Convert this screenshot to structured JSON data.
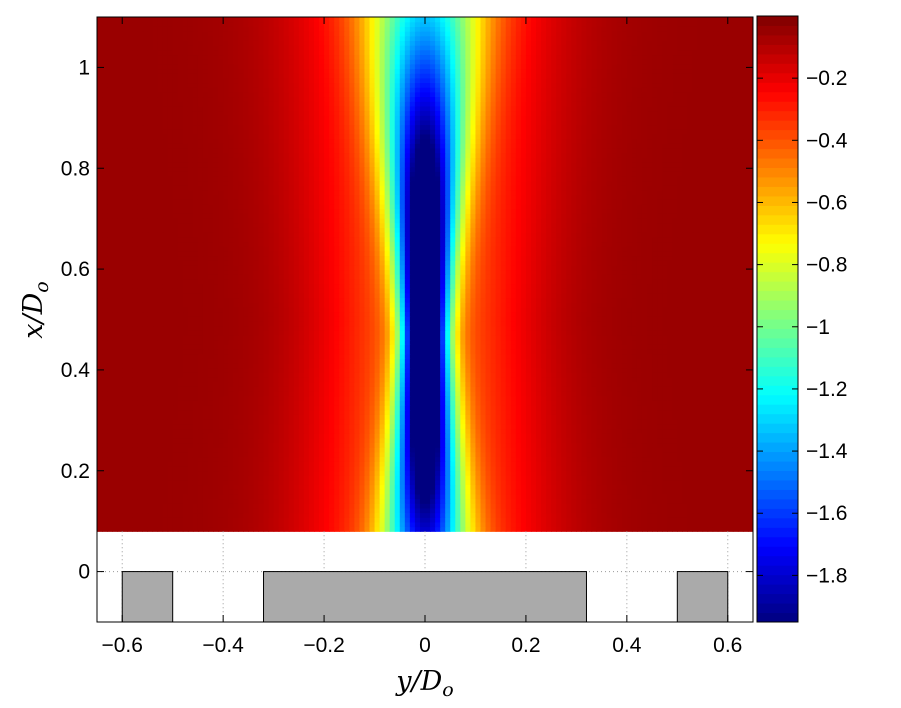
{
  "chart_data": {
    "type": "heatmap",
    "title": "",
    "xlabel": "y/D",
    "xlabel_sub": "o",
    "ylabel": "x/D",
    "ylabel_sub": "o",
    "xlim": [
      -0.65,
      0.65
    ],
    "ylim": [
      -0.1,
      1.1
    ],
    "xticks": [
      -0.6,
      -0.4,
      -0.2,
      0,
      0.2,
      0.4,
      0.6
    ],
    "xtick_labels": [
      "−0.6",
      "−0.4",
      "−0.2",
      "0",
      "0.2",
      "0.4",
      "0.6"
    ],
    "yticks": [
      0,
      0.2,
      0.4,
      0.6,
      0.8,
      1
    ],
    "ytick_labels": [
      "0",
      "0.2",
      "0.4",
      "0.6",
      "0.8",
      "1"
    ],
    "field_x_range": [
      -0.65,
      0.65
    ],
    "field_y_range": [
      0.08,
      1.1
    ],
    "jet_center_y": 0,
    "minimum": {
      "x": 0,
      "y": 0.5,
      "value": -1.95
    },
    "colorbar": {
      "colormap": "jet",
      "clim": [
        -1.95,
        0.0
      ],
      "ticks": [
        -0.2,
        -0.4,
        -0.6,
        -0.8,
        -1,
        -1.2,
        -1.4,
        -1.6,
        -1.8
      ],
      "tick_labels": [
        "−0.2",
        "−0.4",
        "−0.6",
        "−0.8",
        "−1",
        "−1.2",
        "−1.4",
        "−1.6",
        "−1.8"
      ]
    },
    "geometry_blocks": [
      {
        "x_range": [
          -0.6,
          -0.5
        ],
        "y_range": [
          -0.1,
          0
        ]
      },
      {
        "x_range": [
          -0.32,
          0.32
        ],
        "y_range": [
          -0.1,
          0
        ]
      },
      {
        "x_range": [
          0.5,
          0.6
        ],
        "y_range": [
          -0.1,
          0
        ]
      }
    ],
    "colors": {
      "block_fill": "#aaaaaa",
      "grid": "#9a9a9a"
    },
    "grid": "dotted"
  }
}
